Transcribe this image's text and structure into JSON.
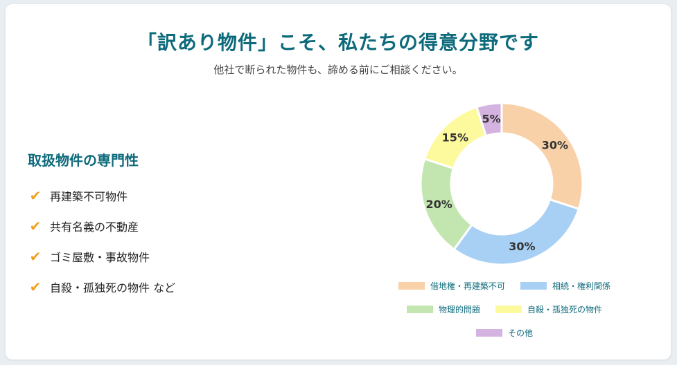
{
  "header": {
    "title": "「訳あり物件」こそ、私たちの得意分野です",
    "subtitle": "他社で断られた物件も、諦める前にご相談ください。"
  },
  "features": {
    "title": "取扱物件の専門性",
    "icon": "check-icon",
    "items": [
      "再建築不可物件",
      "共有名義の不動産",
      "ゴミ屋敷・事故物件",
      "自殺・孤独死の物件 など"
    ]
  },
  "chart_data": {
    "type": "pie",
    "categories": [
      "借地権・再建築不可",
      "相続・権利関係",
      "物理的問題",
      "自殺・孤独死の物件",
      "その他"
    ],
    "values": [
      30,
      30,
      20,
      15,
      5
    ],
    "data_labels": [
      "30%",
      "30%",
      "20%",
      "15%",
      "5%"
    ],
    "colors": [
      "#f8d1a8",
      "#a8d0f4",
      "#c3e6b0",
      "#fdfa9e",
      "#d5b3e0"
    ],
    "legend_position": "bottom"
  }
}
